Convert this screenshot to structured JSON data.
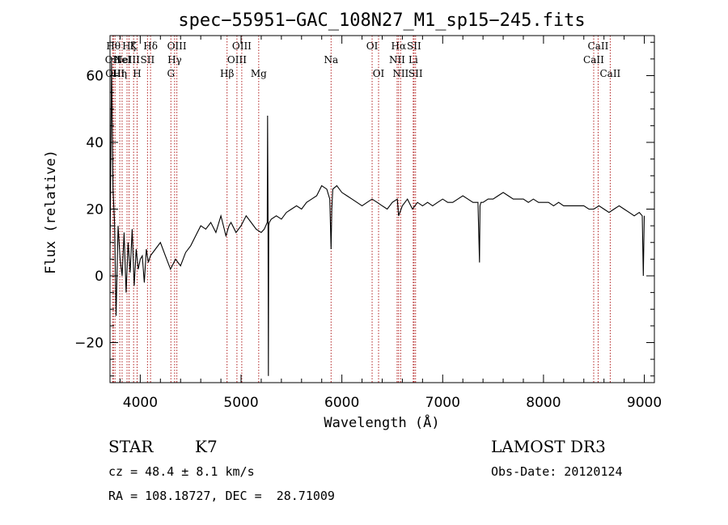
{
  "chart_data": {
    "type": "line",
    "title": "spec−55951−GAC_108N27_M1_sp15−245.fits",
    "xlabel": "Wavelength (Å)",
    "ylabel": "Flux (relative)",
    "xlim": [
      3700,
      9100
    ],
    "ylim": [
      -32,
      72
    ],
    "xticks": [
      4000,
      5000,
      6000,
      7000,
      8000,
      9000
    ],
    "xtick_labels": [
      "4000",
      "5000",
      "6000",
      "7000",
      "8000",
      "9000"
    ],
    "yticks": [
      -20,
      0,
      20,
      40,
      60
    ],
    "ytick_labels": [
      "−20",
      "0",
      "20",
      "40",
      "60"
    ],
    "series": [
      {
        "name": "flux",
        "x": [
          3700,
          3715,
          3730,
          3745,
          3760,
          3780,
          3800,
          3820,
          3840,
          3860,
          3880,
          3900,
          3920,
          3940,
          3960,
          3980,
          4000,
          4020,
          4040,
          4060,
          4080,
          4100,
          4150,
          4200,
          4250,
          4300,
          4350,
          4400,
          4450,
          4500,
          4550,
          4600,
          4650,
          4700,
          4750,
          4800,
          4850,
          4880,
          4900,
          4950,
          5000,
          5050,
          5100,
          5150,
          5200,
          5230,
          5260,
          5263,
          5268,
          5271,
          5274,
          5280,
          5300,
          5350,
          5400,
          5450,
          5500,
          5550,
          5600,
          5650,
          5700,
          5750,
          5800,
          5850,
          5880,
          5893,
          5900,
          5910,
          5950,
          6000,
          6050,
          6100,
          6150,
          6200,
          6250,
          6300,
          6350,
          6400,
          6450,
          6500,
          6550,
          6563,
          6600,
          6650,
          6700,
          6750,
          6800,
          6850,
          6900,
          6950,
          7000,
          7050,
          7100,
          7150,
          7200,
          7250,
          7300,
          7350,
          7365,
          7370,
          7380,
          7400,
          7450,
          7500,
          7550,
          7600,
          7650,
          7700,
          7750,
          7800,
          7850,
          7900,
          7950,
          8000,
          8050,
          8100,
          8150,
          8200,
          8250,
          8300,
          8350,
          8400,
          8450,
          8500,
          8550,
          8600,
          8650,
          8700,
          8750,
          8800,
          8850,
          8900,
          8950,
          8980,
          8990,
          9000
        ],
        "y": [
          5,
          64,
          26,
          16,
          -12,
          15,
          5,
          0,
          13,
          -5,
          10,
          1,
          14,
          -3,
          8,
          2,
          5,
          6,
          -2,
          8,
          4,
          6,
          8,
          10,
          6,
          2,
          5,
          3,
          7,
          9,
          12,
          15,
          14,
          16,
          13,
          18,
          12,
          15,
          16,
          13,
          15,
          18,
          16,
          14,
          13,
          14,
          16,
          48,
          14,
          -30,
          15,
          16,
          17,
          18,
          17,
          19,
          20,
          21,
          20,
          22,
          23,
          24,
          27,
          26,
          23,
          8,
          20,
          26,
          27,
          25,
          24,
          23,
          22,
          21,
          22,
          23,
          22,
          21,
          20,
          22,
          23,
          18,
          21,
          23,
          20,
          22,
          21,
          22,
          21,
          22,
          23,
          22,
          22,
          23,
          24,
          23,
          22,
          22,
          4,
          21,
          22,
          22,
          23,
          23,
          24,
          25,
          24,
          23,
          23,
          23,
          22,
          23,
          22,
          22,
          22,
          21,
          22,
          21,
          21,
          21,
          21,
          21,
          20,
          20,
          21,
          20,
          19,
          20,
          21,
          20,
          19,
          18,
          19,
          18,
          0,
          18
        ]
      }
    ],
    "lines": [
      {
        "x": 3727,
        "label": "OII",
        "row": 2
      },
      {
        "x": 3734,
        "label": "Hθ",
        "row": 1
      },
      {
        "x": 3750,
        "label": "OIII",
        "row": 3
      },
      {
        "x": 3797,
        "label": "Hη",
        "row": 3
      },
      {
        "x": 3820,
        "label": "HeI",
        "row": 2
      },
      {
        "x": 3869,
        "label": "NeIII",
        "row": 2
      },
      {
        "x": 3889,
        "label": "Hζ",
        "row": 1
      },
      {
        "x": 3934,
        "label": "K",
        "row": 1
      },
      {
        "x": 3969,
        "label": "H",
        "row": 3
      },
      {
        "x": 4072,
        "label": "SII",
        "row": 2
      },
      {
        "x": 4102,
        "label": "Hδ",
        "row": 1
      },
      {
        "x": 4304,
        "label": "G",
        "row": 3
      },
      {
        "x": 4341,
        "label": "Hγ",
        "row": 2
      },
      {
        "x": 4363,
        "label": "OIII",
        "row": 1
      },
      {
        "x": 4861,
        "label": "Hβ",
        "row": 3
      },
      {
        "x": 4959,
        "label": "OIII",
        "row": 2
      },
      {
        "x": 5007,
        "label": "OIII",
        "row": 1
      },
      {
        "x": 5175,
        "label": "Mg",
        "row": 3
      },
      {
        "x": 5893,
        "label": "Na",
        "row": 2
      },
      {
        "x": 6300,
        "label": "OI",
        "row": 1
      },
      {
        "x": 6364,
        "label": "OI",
        "row": 3
      },
      {
        "x": 6548,
        "label": "NII",
        "row": 2
      },
      {
        "x": 6563,
        "label": "Hα",
        "row": 1
      },
      {
        "x": 6583,
        "label": "NII",
        "row": 3
      },
      {
        "x": 6708,
        "label": "Li",
        "row": 2
      },
      {
        "x": 6716,
        "label": "SII",
        "row": 1
      },
      {
        "x": 6731,
        "label": "SII",
        "row": 3
      },
      {
        "x": 8498,
        "label": "CaII",
        "row": 2
      },
      {
        "x": 8542,
        "label": "CaII",
        "row": 1
      },
      {
        "x": 8662,
        "label": "CaII",
        "row": 3
      }
    ]
  },
  "info": {
    "class": "STAR",
    "subclass": "K7",
    "survey": "LAMOST DR3",
    "cz": "cz = 48.4 ± 8.1 km/s",
    "obsdate": "Obs-Date: 20120124",
    "radec": "RA = 108.18727, DEC =  28.71009"
  },
  "colors": {
    "axis": "#000000",
    "spectrum": "#000000",
    "line_marker": "#b22222"
  }
}
